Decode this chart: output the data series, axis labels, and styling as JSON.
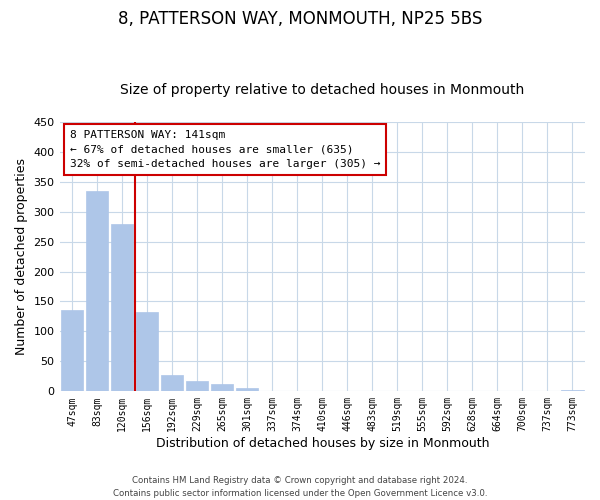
{
  "title": "8, PATTERSON WAY, MONMOUTH, NP25 5BS",
  "subtitle": "Size of property relative to detached houses in Monmouth",
  "xlabel": "Distribution of detached houses by size in Monmouth",
  "ylabel": "Number of detached properties",
  "bar_labels": [
    "47sqm",
    "83sqm",
    "120sqm",
    "156sqm",
    "192sqm",
    "229sqm",
    "265sqm",
    "301sqm",
    "337sqm",
    "374sqm",
    "410sqm",
    "446sqm",
    "483sqm",
    "519sqm",
    "555sqm",
    "592sqm",
    "628sqm",
    "664sqm",
    "700sqm",
    "737sqm",
    "773sqm"
  ],
  "bar_values": [
    135,
    335,
    280,
    133,
    27,
    18,
    13,
    6,
    0,
    0,
    0,
    0,
    0,
    0,
    0,
    0,
    0,
    0,
    0,
    0,
    3
  ],
  "bar_color": "#aec6e8",
  "vline_color": "#cc0000",
  "annotation_title": "8 PATTERSON WAY: 141sqm",
  "annotation_line1": "← 67% of detached houses are smaller (635)",
  "annotation_line2": "32% of semi-detached houses are larger (305) →",
  "annotation_box_color": "#ffffff",
  "annotation_box_edge": "#cc0000",
  "ylim": [
    0,
    450
  ],
  "yticks": [
    0,
    50,
    100,
    150,
    200,
    250,
    300,
    350,
    400,
    450
  ],
  "footer1": "Contains HM Land Registry data © Crown copyright and database right 2024.",
  "footer2": "Contains public sector information licensed under the Open Government Licence v3.0.",
  "background_color": "#ffffff",
  "grid_color": "#c8d8e8",
  "title_fontsize": 12,
  "subtitle_fontsize": 10,
  "axis_label_fontsize": 9
}
